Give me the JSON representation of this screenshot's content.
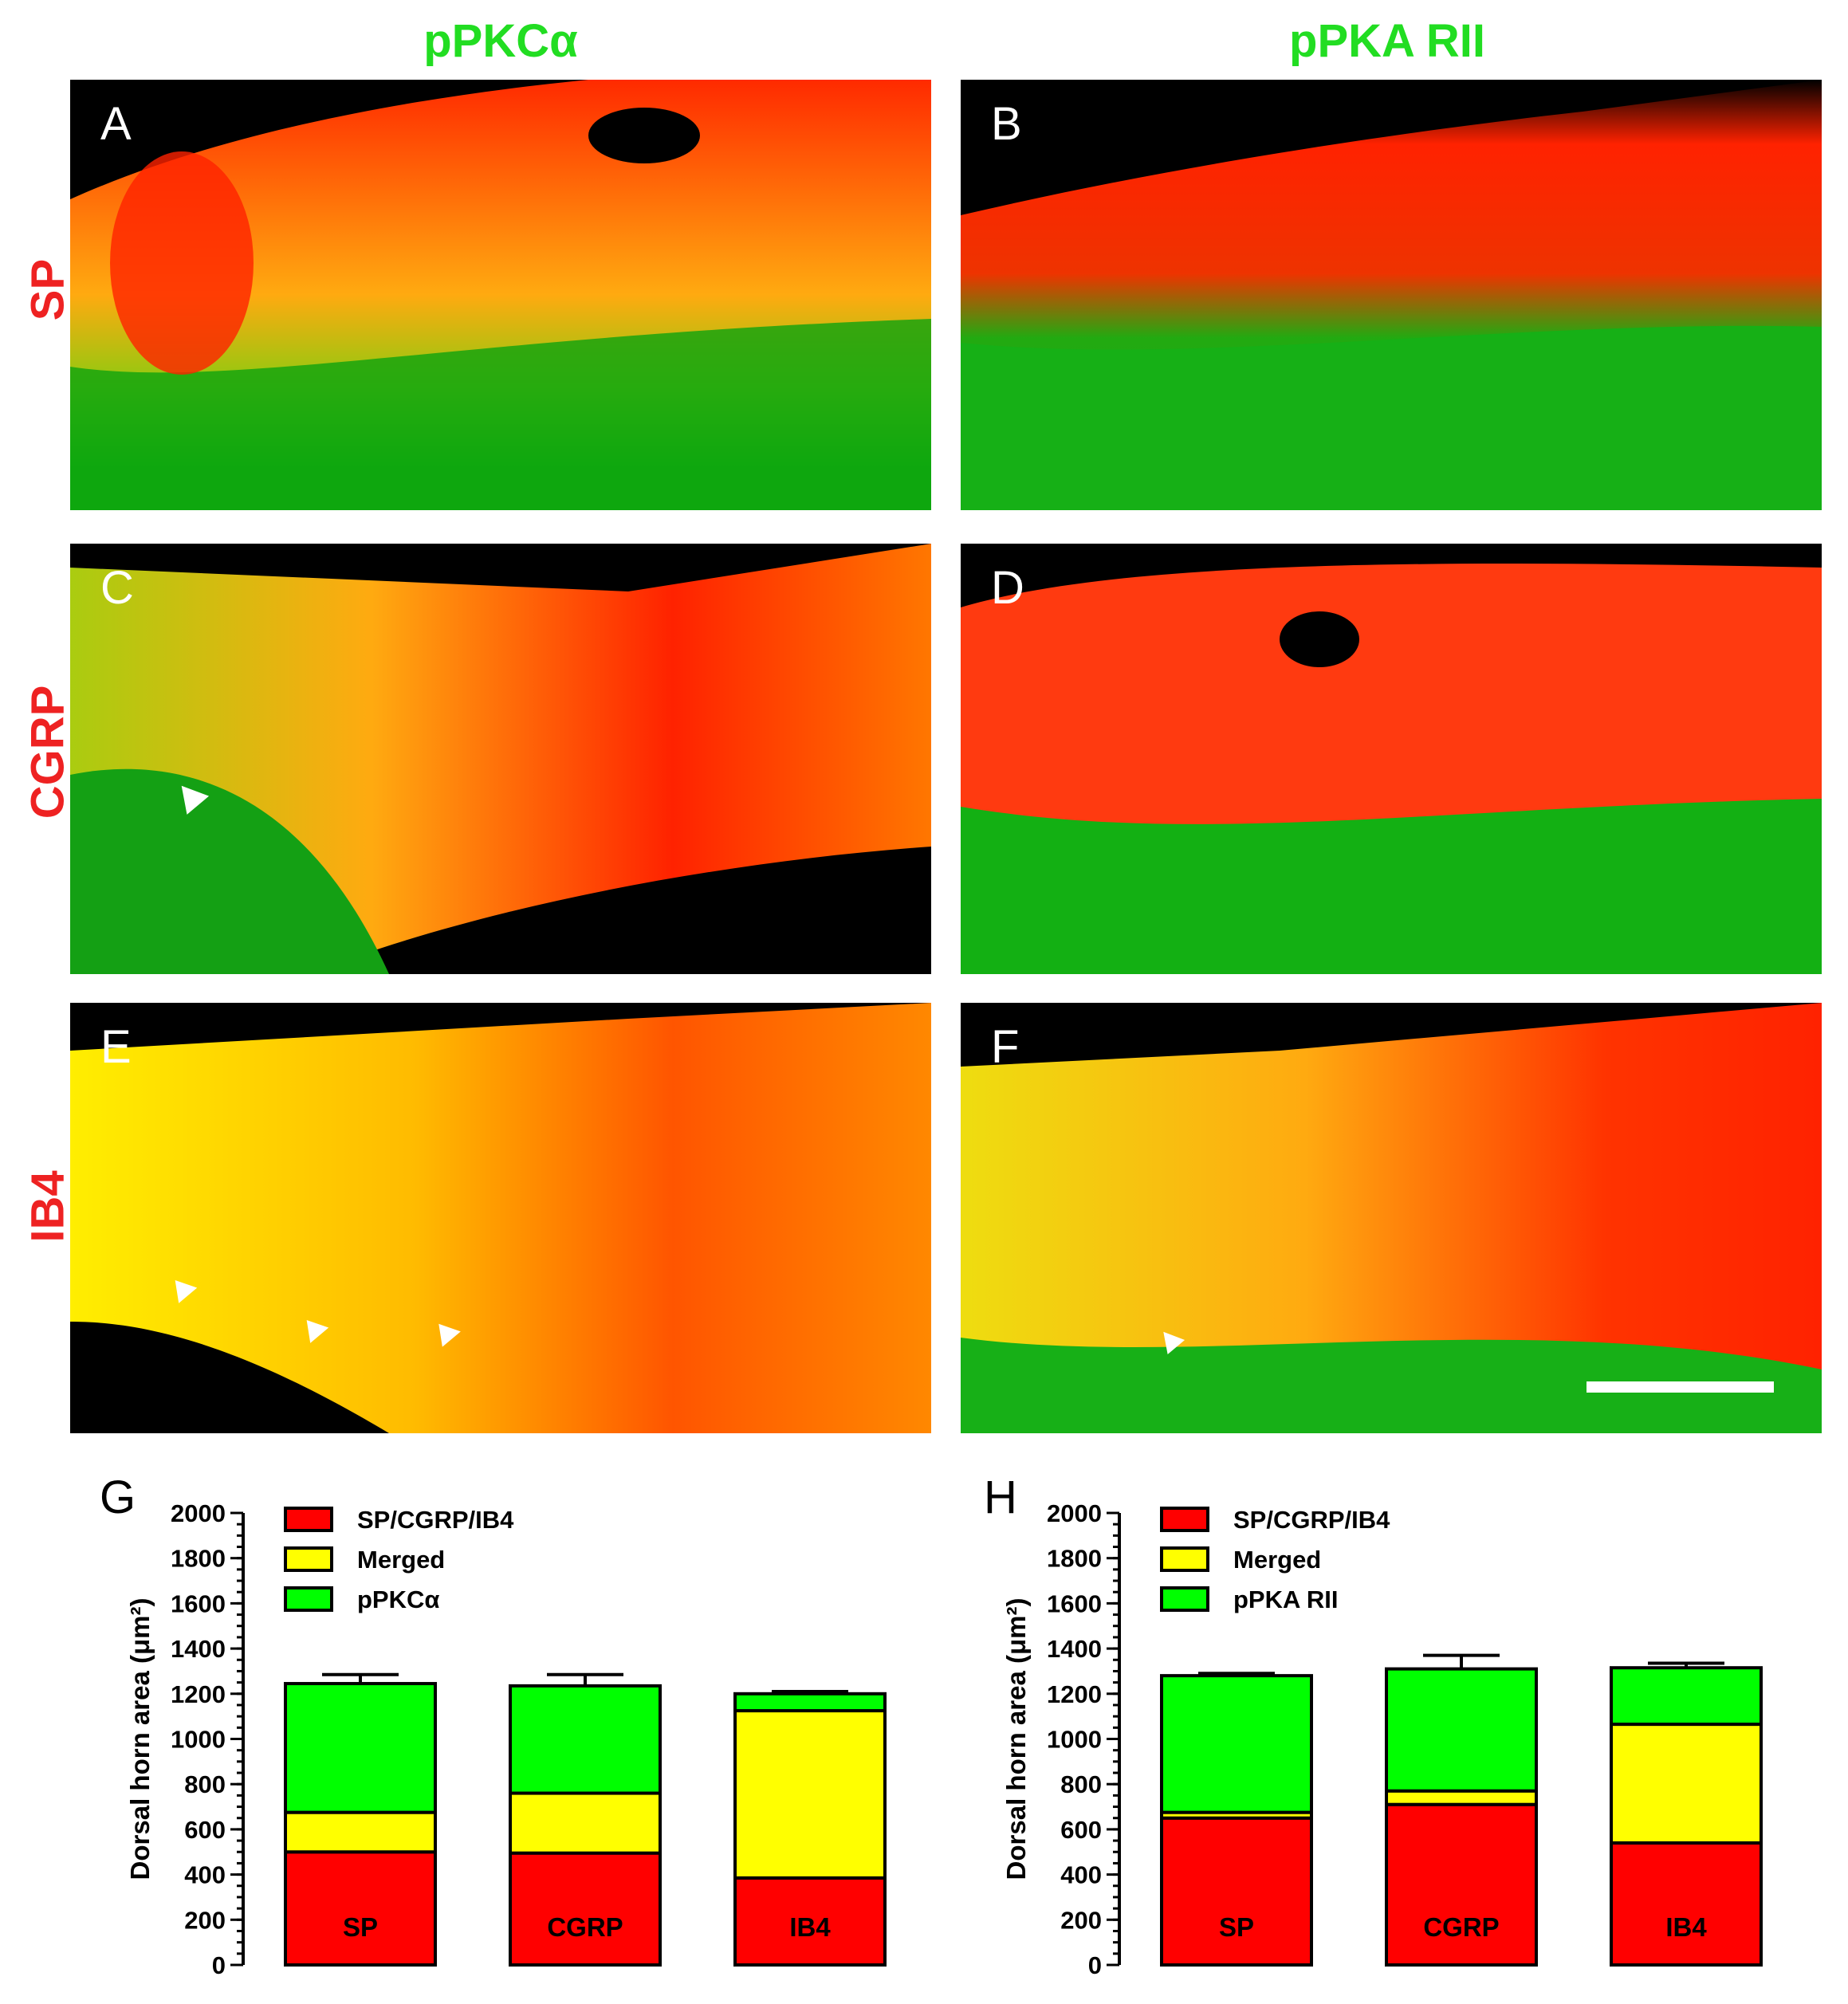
{
  "column_titles": [
    "pPKCα",
    "pPKA RII"
  ],
  "row_labels": [
    "SP",
    "CGRP",
    "IB4"
  ],
  "panel_labels": [
    "A",
    "B",
    "C",
    "D",
    "E",
    "F"
  ],
  "colors": {
    "red": "#ff0000",
    "yellow": "#ffff00",
    "green": "#00ff00",
    "title_green": "#22dd22",
    "label_red": "#ee2222"
  },
  "chart_data": [
    {
      "panel": "G",
      "type": "bar",
      "stacked": true,
      "ylabel": "Dorsal horn area (μm²)",
      "ylim": [
        0,
        2000
      ],
      "yticks": [
        0,
        200,
        400,
        600,
        800,
        1000,
        1200,
        1400,
        1600,
        1800,
        2000
      ],
      "categories": [
        "SP",
        "CGRP",
        "IB4"
      ],
      "legend": [
        "SP/CGRP/IB4",
        "Merged",
        "pPKCα"
      ],
      "legend_position": "top-left",
      "series": [
        {
          "name": "SP/CGRP/IB4",
          "values": [
            500,
            495,
            385
          ],
          "errors": [
            30,
            35,
            15
          ],
          "color": "#ff0000"
        },
        {
          "name": "Merged",
          "values": [
            175,
            265,
            740
          ],
          "errors": [
            35,
            25,
            0
          ],
          "color": "#ffff00"
        },
        {
          "name": "pPKCα",
          "values": [
            570,
            475,
            75
          ],
          "errors": [
            40,
            50,
            10
          ],
          "color": "#00ff00"
        }
      ]
    },
    {
      "panel": "H",
      "type": "bar",
      "stacked": true,
      "ylabel": "Dorsal horn area (μm²)",
      "ylim": [
        0,
        2000
      ],
      "yticks": [
        0,
        200,
        400,
        600,
        800,
        1000,
        1200,
        1400,
        1600,
        1800,
        2000
      ],
      "categories": [
        "SP",
        "CGRP",
        "IB4"
      ],
      "legend": [
        "SP/CGRP/IB4",
        "Merged",
        "pPKA RII"
      ],
      "legend_position": "top-left",
      "series": [
        {
          "name": "SP/CGRP/IB4",
          "values": [
            650,
            710,
            540
          ],
          "errors": [
            0,
            0,
            20
          ],
          "color": "#ff0000"
        },
        {
          "name": "Merged",
          "values": [
            25,
            60,
            525
          ],
          "errors": [
            15,
            15,
            75
          ],
          "color": "#ffff00"
        },
        {
          "name": "pPKA RII",
          "values": [
            605,
            540,
            250
          ],
          "errors": [
            10,
            60,
            20
          ],
          "color": "#00ff00"
        }
      ]
    }
  ]
}
